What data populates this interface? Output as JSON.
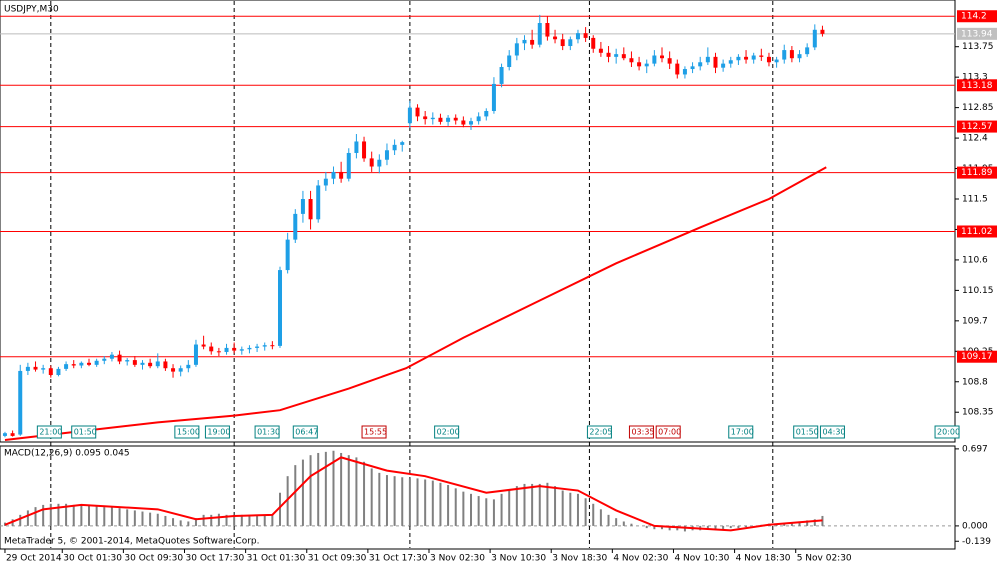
{
  "chart_data": {
    "type": "candlestick",
    "title": "USDJPY,M30",
    "indicator_label": "MACD(12,26,9) 0.095 0.045",
    "copyright": "MetaTrader 5, © 2001-2014, MetaQuotes Software Corp.",
    "bull_color": "#1e9fe6",
    "bear_color": "#ff0000",
    "xlim": [
      -1.3,
      248.7
    ],
    "xticks": [
      {
        "value": 0,
        "label": "29 Oct 2014"
      },
      {
        "value": 15,
        "label": "30 Oct 01:30"
      },
      {
        "value": 31,
        "label": "30 Oct 09:30"
      },
      {
        "value": 47,
        "label": "30 Oct 17:30"
      },
      {
        "value": 63,
        "label": "31 Oct 01:30"
      },
      {
        "value": 79,
        "label": "31 Oct 09:30"
      },
      {
        "value": 95,
        "label": "31 Oct 17:30"
      },
      {
        "value": 111,
        "label": "3 Nov 02:30"
      },
      {
        "value": 127,
        "label": "3 Nov 10:30"
      },
      {
        "value": 143,
        "label": "3 Nov 18:30"
      },
      {
        "value": 159,
        "label": "4 Nov 02:30"
      },
      {
        "value": 175,
        "label": "4 Nov 10:30"
      },
      {
        "value": 191,
        "label": "4 Nov 18:30"
      },
      {
        "value": 207,
        "label": "5 Nov 02:30"
      }
    ],
    "period_separators": [
      12,
      60,
      106,
      153,
      201
    ],
    "ylim": [
      107.91,
      114.44
    ],
    "yticks": [
      113.75,
      113.3,
      112.85,
      112.4,
      111.95,
      111.5,
      111.05,
      110.6,
      110.15,
      109.7,
      109.25,
      108.8,
      108.35
    ],
    "levels": [
      114.2,
      113.18,
      112.57,
      111.89,
      111.02,
      109.17
    ],
    "level_color": "#ff0000",
    "bid": 113.94,
    "candles": [
      [
        0,
        108.0,
        108.06,
        107.98,
        108.04
      ],
      [
        2,
        108.04,
        108.08,
        107.99,
        108.0
      ],
      [
        4,
        108.02,
        109.05,
        108.0,
        108.96
      ],
      [
        6,
        108.96,
        109.08,
        108.9,
        109.02
      ],
      [
        8,
        109.02,
        109.1,
        108.95,
        108.98
      ],
      [
        10,
        108.98,
        109.05,
        108.92,
        109.0
      ],
      [
        12,
        109.0,
        109.04,
        108.86,
        108.9
      ],
      [
        14,
        108.9,
        109.02,
        108.88,
        108.99
      ],
      [
        16,
        108.99,
        109.1,
        108.96,
        109.06
      ],
      [
        18,
        109.06,
        109.12,
        109.0,
        109.04
      ],
      [
        20,
        109.04,
        109.1,
        109.0,
        109.08
      ],
      [
        22,
        109.08,
        109.14,
        109.03,
        109.05
      ],
      [
        24,
        109.05,
        109.14,
        109.02,
        109.11
      ],
      [
        26,
        109.11,
        109.18,
        109.06,
        109.14
      ],
      [
        28,
        109.14,
        109.24,
        109.1,
        109.2
      ],
      [
        30,
        109.2,
        109.26,
        109.06,
        109.1
      ],
      [
        32,
        109.1,
        109.15,
        109.04,
        109.12
      ],
      [
        34,
        109.12,
        109.18,
        109.02,
        109.05
      ],
      [
        36,
        109.05,
        109.12,
        108.98,
        109.08
      ],
      [
        38,
        109.08,
        109.14,
        109.0,
        109.03
      ],
      [
        40,
        109.03,
        109.22,
        109.0,
        109.1
      ],
      [
        42,
        109.1,
        109.14,
        108.96,
        109.0
      ],
      [
        44,
        109.0,
        109.06,
        108.86,
        108.95
      ],
      [
        46,
        108.95,
        109.04,
        108.88,
        109.0
      ],
      [
        48,
        109.0,
        109.12,
        108.94,
        109.05
      ],
      [
        50,
        109.05,
        109.42,
        109.02,
        109.35
      ],
      [
        52,
        109.35,
        109.48,
        109.28,
        109.32
      ],
      [
        54,
        109.32,
        109.38,
        109.2,
        109.25
      ],
      [
        56,
        109.25,
        109.3,
        109.18,
        109.24
      ],
      [
        58,
        109.24,
        109.36,
        109.2,
        109.3
      ],
      [
        60,
        109.3,
        109.38,
        109.22,
        109.26
      ],
      [
        62,
        109.26,
        109.32,
        109.2,
        109.28
      ],
      [
        64,
        109.28,
        109.34,
        109.22,
        109.3
      ],
      [
        66,
        109.3,
        109.36,
        109.24,
        109.32
      ],
      [
        68,
        109.32,
        109.38,
        109.26,
        109.34
      ],
      [
        70,
        109.34,
        109.4,
        109.28,
        109.33
      ],
      [
        72,
        109.33,
        110.5,
        109.3,
        110.45
      ],
      [
        74,
        110.45,
        111.0,
        110.4,
        110.9
      ],
      [
        76,
        110.9,
        111.35,
        110.85,
        111.28
      ],
      [
        78,
        111.28,
        111.62,
        111.15,
        111.5
      ],
      [
        80,
        111.5,
        111.62,
        111.05,
        111.2
      ],
      [
        82,
        111.2,
        111.78,
        111.15,
        111.7
      ],
      [
        84,
        111.7,
        111.9,
        111.62,
        111.8
      ],
      [
        86,
        111.8,
        111.98,
        111.72,
        111.9
      ],
      [
        88,
        111.9,
        112.05,
        111.74,
        111.8
      ],
      [
        90,
        111.8,
        112.25,
        111.76,
        112.18
      ],
      [
        92,
        112.18,
        112.46,
        112.1,
        112.35
      ],
      [
        94,
        112.35,
        112.42,
        112.05,
        112.1
      ],
      [
        96,
        112.1,
        112.2,
        111.9,
        111.98
      ],
      [
        98,
        111.98,
        112.16,
        111.88,
        112.08
      ],
      [
        100,
        112.08,
        112.32,
        112.0,
        112.22
      ],
      [
        102,
        112.22,
        112.38,
        112.15,
        112.3
      ],
      [
        104,
        112.3,
        112.36,
        112.2,
        112.34
      ],
      [
        106,
        112.62,
        112.95,
        112.55,
        112.85
      ],
      [
        108,
        112.85,
        112.9,
        112.65,
        112.72
      ],
      [
        110,
        112.72,
        112.8,
        112.6,
        112.68
      ],
      [
        112,
        112.68,
        112.78,
        112.6,
        112.7
      ],
      [
        114,
        112.7,
        112.76,
        112.6,
        112.64
      ],
      [
        116,
        112.64,
        112.74,
        112.58,
        112.7
      ],
      [
        118,
        112.7,
        112.75,
        112.6,
        112.66
      ],
      [
        120,
        112.66,
        112.72,
        112.56,
        112.6
      ],
      [
        122,
        112.6,
        112.7,
        112.52,
        112.65
      ],
      [
        124,
        112.65,
        112.78,
        112.6,
        112.72
      ],
      [
        126,
        112.72,
        112.84,
        112.66,
        112.8
      ],
      [
        128,
        112.8,
        113.3,
        112.76,
        113.2
      ],
      [
        130,
        113.2,
        113.5,
        113.15,
        113.45
      ],
      [
        132,
        113.45,
        113.7,
        113.4,
        113.62
      ],
      [
        134,
        113.62,
        113.88,
        113.55,
        113.8
      ],
      [
        136,
        113.8,
        113.92,
        113.7,
        113.85
      ],
      [
        138,
        113.85,
        114.0,
        113.72,
        113.78
      ],
      [
        140,
        113.78,
        114.22,
        113.74,
        114.1
      ],
      [
        142,
        114.1,
        114.2,
        113.84,
        113.9
      ],
      [
        144,
        113.9,
        114.0,
        113.8,
        113.86
      ],
      [
        146,
        113.86,
        113.94,
        113.7,
        113.76
      ],
      [
        148,
        113.76,
        113.9,
        113.7,
        113.86
      ],
      [
        150,
        113.86,
        114.0,
        113.8,
        113.95
      ],
      [
        152,
        113.95,
        114.04,
        113.82,
        113.88
      ],
      [
        154,
        113.88,
        113.92,
        113.66,
        113.72
      ],
      [
        156,
        113.72,
        113.82,
        113.6,
        113.66
      ],
      [
        158,
        113.66,
        113.76,
        113.52,
        113.6
      ],
      [
        160,
        113.6,
        113.72,
        113.5,
        113.64
      ],
      [
        162,
        113.64,
        113.74,
        113.55,
        113.58
      ],
      [
        164,
        113.58,
        113.68,
        113.45,
        113.52
      ],
      [
        166,
        113.52,
        113.6,
        113.4,
        113.46
      ],
      [
        168,
        113.46,
        113.56,
        113.36,
        113.5
      ],
      [
        170,
        113.5,
        113.7,
        113.46,
        113.62
      ],
      [
        172,
        113.62,
        113.74,
        113.52,
        113.58
      ],
      [
        174,
        113.58,
        113.68,
        113.42,
        113.5
      ],
      [
        176,
        113.5,
        113.56,
        113.28,
        113.34
      ],
      [
        178,
        113.34,
        113.46,
        113.28,
        113.42
      ],
      [
        180,
        113.42,
        113.52,
        113.36,
        113.46
      ],
      [
        182,
        113.46,
        113.6,
        113.4,
        113.52
      ],
      [
        184,
        113.52,
        113.74,
        113.48,
        113.6
      ],
      [
        186,
        113.6,
        113.66,
        113.36,
        113.44
      ],
      [
        188,
        113.44,
        113.56,
        113.38,
        113.5
      ],
      [
        190,
        113.5,
        113.6,
        113.44,
        113.55
      ],
      [
        192,
        113.55,
        113.64,
        113.48,
        113.6
      ],
      [
        194,
        113.6,
        113.7,
        113.5,
        113.56
      ],
      [
        196,
        113.56,
        113.66,
        113.5,
        113.62
      ],
      [
        198,
        113.62,
        113.72,
        113.54,
        113.6
      ],
      [
        200,
        113.6,
        113.66,
        113.46,
        113.52
      ],
      [
        202,
        113.52,
        113.6,
        113.44,
        113.56
      ],
      [
        204,
        113.56,
        113.78,
        113.5,
        113.7
      ],
      [
        206,
        113.7,
        113.76,
        113.52,
        113.58
      ],
      [
        208,
        113.58,
        113.7,
        113.52,
        113.64
      ],
      [
        210,
        113.64,
        113.8,
        113.6,
        113.74
      ],
      [
        212,
        113.74,
        114.08,
        113.7,
        114.0
      ],
      [
        214,
        114.0,
        114.06,
        113.9,
        113.94
      ]
    ],
    "moving_average": {
      "color": "#ff0000",
      "x": [
        0,
        20,
        40,
        60,
        72,
        90,
        105,
        120,
        140,
        160,
        182,
        200,
        215
      ],
      "values": [
        107.94,
        108.07,
        108.2,
        108.3,
        108.38,
        108.7,
        109.0,
        109.45,
        110.0,
        110.55,
        111.08,
        111.5,
        111.97
      ]
    },
    "events": [
      {
        "x": 9,
        "label": "21:00",
        "color": "#008080"
      },
      {
        "x": 18,
        "label": "01:50",
        "color": "#008080"
      },
      {
        "x": 45,
        "label": "15:00",
        "color": "#008080"
      },
      {
        "x": 53,
        "label": "19:00",
        "color": "#008080"
      },
      {
        "x": 66,
        "label": "01:30",
        "color": "#008080"
      },
      {
        "x": 76,
        "label": "06:47",
        "color": "#008080"
      },
      {
        "x": 94,
        "label": "15:55",
        "color": "#c00000"
      },
      {
        "x": 113,
        "label": "02:00",
        "color": "#008080"
      },
      {
        "x": 153,
        "label": "22:05",
        "color": "#008080"
      },
      {
        "x": 164,
        "label": "03:35",
        "color": "#c00000"
      },
      {
        "x": 171,
        "label": "07:00",
        "color": "#c00000"
      },
      {
        "x": 190,
        "label": "17:00",
        "color": "#008080"
      },
      {
        "x": 207,
        "label": "01:50",
        "color": "#008080"
      },
      {
        "x": 214,
        "label": "04:30",
        "color": "#008080"
      },
      {
        "x": 244,
        "label": "20:00",
        "color": "#008080"
      }
    ],
    "macd": {
      "ylim": [
        -0.2,
        0.714
      ],
      "yticks": [
        0.697,
        {
          "value": 0,
          "label": "0.000"
        },
        -0.139
      ],
      "histogram_color": "#808080",
      "signal_color": "#ff0000",
      "histogram": [
        0.03,
        0.06,
        0.1,
        0.14,
        0.17,
        0.19,
        0.2,
        0.2,
        0.2,
        0.19,
        0.19,
        0.18,
        0.18,
        0.17,
        0.17,
        0.16,
        0.15,
        0.14,
        0.13,
        0.12,
        0.11,
        0.09,
        0.07,
        0.05,
        0.04,
        0.07,
        0.1,
        0.1,
        0.11,
        0.1,
        0.1,
        0.1,
        0.1,
        0.1,
        0.1,
        0.1,
        0.3,
        0.45,
        0.55,
        0.6,
        0.64,
        0.66,
        0.67,
        0.68,
        0.66,
        0.64,
        0.62,
        0.58,
        0.52,
        0.48,
        0.46,
        0.45,
        0.44,
        0.43,
        0.43,
        0.42,
        0.41,
        0.39,
        0.37,
        0.34,
        0.31,
        0.29,
        0.27,
        0.25,
        0.24,
        0.29,
        0.33,
        0.36,
        0.38,
        0.38,
        0.38,
        0.39,
        0.36,
        0.32,
        0.3,
        0.29,
        0.25,
        0.2,
        0.15,
        0.1,
        0.07,
        0.04,
        0.02,
        0.0,
        -0.02,
        -0.03,
        -0.03,
        -0.04,
        -0.04,
        -0.05,
        -0.04,
        -0.04,
        -0.03,
        -0.03,
        -0.03,
        -0.02,
        -0.02,
        -0.01,
        0.0,
        0.01,
        0.02,
        0.02,
        0.02,
        0.03,
        0.04,
        0.05,
        0.06,
        0.09
      ],
      "signal_x": [
        0,
        10,
        20,
        40,
        50,
        60,
        70,
        80,
        88,
        100,
        110,
        126,
        140,
        150,
        160,
        170,
        190,
        200,
        214
      ],
      "signal": [
        0.01,
        0.15,
        0.19,
        0.15,
        0.06,
        0.09,
        0.1,
        0.45,
        0.62,
        0.5,
        0.45,
        0.3,
        0.36,
        0.32,
        0.14,
        0.0,
        -0.04,
        0.01,
        0.05
      ]
    }
  }
}
